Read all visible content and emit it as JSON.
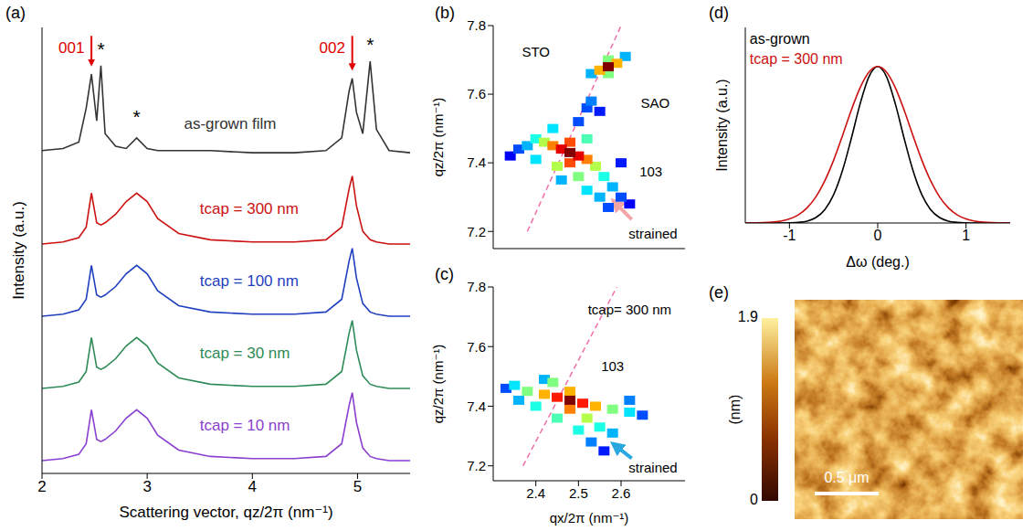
{
  "chart_data": [
    {
      "type": "line",
      "panel": "(a)",
      "x_label": "Scattering vector, qz/2π (nm⁻¹)",
      "y_label": "Intensity (a.u.)",
      "tick_labels": "x",
      "xlim": [
        2,
        5.5
      ],
      "xticks": [
        2,
        3,
        4,
        5
      ],
      "ylim": [
        0,
        10.5
      ],
      "x": [
        2.0,
        2.2,
        2.35,
        2.42,
        2.47,
        2.52,
        2.56,
        2.6,
        2.7,
        2.8,
        2.9,
        3.0,
        3.1,
        3.3,
        3.6,
        4.0,
        4.4,
        4.7,
        4.85,
        4.92,
        4.95,
        4.99,
        5.05,
        5.12,
        5.18,
        5.3,
        5.5
      ],
      "series": [
        {
          "name": "as-grown film",
          "color": "#333333",
          "label_x": 3.35,
          "label_y": 8.2,
          "values": [
            7.6,
            7.65,
            7.8,
            8.6,
            9.4,
            8.3,
            9.6,
            8.0,
            7.7,
            7.65,
            7.9,
            7.65,
            7.6,
            7.6,
            7.6,
            7.55,
            7.55,
            7.6,
            7.9,
            9.0,
            9.3,
            8.5,
            8.0,
            9.7,
            8.1,
            7.6,
            7.55
          ]
        },
        {
          "name": "tcap = 300 nm",
          "color": "#cc1111",
          "label_x": 3.5,
          "label_y": 6.2,
          "values": [
            5.4,
            5.45,
            5.55,
            5.8,
            6.6,
            5.9,
            5.85,
            5.9,
            6.1,
            6.4,
            6.6,
            6.4,
            6.0,
            5.65,
            5.5,
            5.45,
            5.45,
            5.5,
            5.8,
            6.7,
            7.0,
            6.3,
            5.7,
            5.5,
            5.45,
            5.4,
            5.4
          ]
        },
        {
          "name": "tcap = 100 nm",
          "color": "#1f3fbf",
          "label_x": 3.5,
          "label_y": 4.5,
          "values": [
            3.7,
            3.75,
            3.85,
            4.1,
            4.9,
            4.2,
            4.15,
            4.2,
            4.4,
            4.7,
            4.9,
            4.7,
            4.3,
            3.95,
            3.8,
            3.75,
            3.75,
            3.8,
            4.1,
            5.0,
            5.3,
            4.6,
            4.0,
            3.8,
            3.75,
            3.7,
            3.7
          ]
        },
        {
          "name": "tcap = 30 nm",
          "color": "#2e8b57",
          "label_x": 3.5,
          "label_y": 2.8,
          "values": [
            2.0,
            2.05,
            2.15,
            2.4,
            3.2,
            2.5,
            2.45,
            2.5,
            2.7,
            3.0,
            3.2,
            3.0,
            2.6,
            2.25,
            2.1,
            2.05,
            2.05,
            2.1,
            2.4,
            3.3,
            3.6,
            2.9,
            2.3,
            2.1,
            2.05,
            2.0,
            2.0
          ]
        },
        {
          "name": "tcap = 10 nm",
          "color": "#8a3fd0",
          "label_x": 3.5,
          "label_y": 1.1,
          "values": [
            0.3,
            0.35,
            0.45,
            0.7,
            1.5,
            0.8,
            0.75,
            0.8,
            1.0,
            1.3,
            1.5,
            1.3,
            0.9,
            0.55,
            0.4,
            0.35,
            0.35,
            0.4,
            0.7,
            1.6,
            1.9,
            1.2,
            0.6,
            0.4,
            0.35,
            0.3,
            0.3
          ]
        }
      ],
      "annotations": [
        {
          "text": "001",
          "x": 2.28,
          "y": 10.0,
          "color": "#e00000",
          "arrow_from": [
            2.47,
            10.3
          ],
          "arrow_to": [
            2.47,
            9.65
          ]
        },
        {
          "text": "002",
          "x": 4.76,
          "y": 10.0,
          "color": "#e00000",
          "arrow_from": [
            4.95,
            10.3
          ],
          "arrow_to": [
            4.95,
            9.55
          ]
        },
        {
          "text": "*",
          "x": 2.56,
          "y": 9.95,
          "color": "#000000"
        },
        {
          "text": "*",
          "x": 2.9,
          "y": 8.35,
          "color": "#000000"
        },
        {
          "text": "*",
          "x": 5.12,
          "y": 10.05,
          "color": "#000000"
        }
      ]
    },
    {
      "type": "heatmap",
      "panel": "(b)",
      "y_label": "qz/2π (nm⁻¹)",
      "tick_labels": "y",
      "xlim": [
        2.3,
        2.75
      ],
      "xticks": [
        2.4,
        2.5,
        2.6
      ],
      "ylim": [
        7.15,
        7.8
      ],
      "yticks": [
        7.2,
        7.4,
        7.6,
        7.8
      ],
      "points": {
        "x": [
          2.34,
          2.62,
          2.36,
          2.6,
          2.57,
          2.5,
          2.6,
          2.38,
          2.58,
          2.55,
          2.46,
          2.4,
          2.56,
          2.52,
          2.44,
          2.4,
          2.52,
          2.54,
          2.42,
          2.5,
          2.45,
          2.44,
          2.52,
          2.48,
          2.48,
          2.46,
          2.5,
          2.48,
          2.55,
          2.53,
          2.52,
          2.53,
          2.61,
          2.57,
          2.57,
          2.55,
          2.59,
          2.57
        ],
        "y": [
          7.42,
          7.28,
          7.44,
          7.4,
          7.27,
          7.52,
          7.3,
          7.45,
          7.33,
          7.3,
          7.35,
          7.41,
          7.36,
          7.32,
          7.5,
          7.47,
          7.47,
          7.39,
          7.46,
          7.36,
          7.39,
          7.45,
          7.41,
          7.4,
          7.46,
          7.44,
          7.42,
          7.43,
          7.55,
          7.66,
          7.56,
          7.58,
          7.71,
          7.66,
          7.7,
          7.67,
          7.69,
          7.68
        ],
        "intensity": [
          0.12,
          0.12,
          0.2,
          0.15,
          0.2,
          0.2,
          0.2,
          0.3,
          0.3,
          0.3,
          0.3,
          0.35,
          0.4,
          0.35,
          0.35,
          0.4,
          0.45,
          0.55,
          0.55,
          0.5,
          0.55,
          0.75,
          0.75,
          0.8,
          0.8,
          0.9,
          0.9,
          1.0,
          0.15,
          0.3,
          0.2,
          0.25,
          0.3,
          0.5,
          0.5,
          0.7,
          0.7,
          1.0
        ]
      },
      "line": {
        "x": [
          2.38,
          2.6
        ],
        "y": [
          7.2,
          7.8
        ],
        "color": "#f06ea9",
        "line_style": "dashed"
      },
      "annotations": [
        {
          "text": "STO",
          "x": 2.4,
          "y": 7.72,
          "color": "#000000"
        },
        {
          "text": "SAO",
          "x": 2.68,
          "y": 7.57,
          "color": "#000000"
        },
        {
          "text": "103",
          "x": 2.67,
          "y": 7.37,
          "color": "#000000"
        },
        {
          "text": "strained",
          "x": 2.675,
          "y": 7.19,
          "color": "#000000",
          "arrow_from": [
            2.625,
            7.235
          ],
          "arrow_to": [
            2.585,
            7.285
          ],
          "arrow_color": "#f4a6a6"
        }
      ]
    },
    {
      "type": "heatmap",
      "panel": "(c)",
      "x_label": "qx/2π (nm⁻¹)",
      "y_label": "qz/2π (nm⁻¹)",
      "xlim": [
        2.3,
        2.75
      ],
      "xticks": [
        2.4,
        2.5,
        2.6
      ],
      "ylim": [
        7.15,
        7.8
      ],
      "yticks": [
        7.2,
        7.4,
        7.6,
        7.8
      ],
      "points": {
        "x": [
          2.56,
          2.33,
          2.65,
          2.62,
          2.53,
          2.58,
          2.42,
          2.36,
          2.35,
          2.62,
          2.55,
          2.4,
          2.5,
          2.45,
          2.38,
          2.58,
          2.44,
          2.52,
          2.42,
          2.54,
          2.48,
          2.48,
          2.45,
          2.51,
          2.48
        ],
        "y": [
          7.25,
          7.46,
          7.37,
          7.42,
          7.28,
          7.31,
          7.49,
          7.42,
          7.47,
          7.38,
          7.33,
          7.4,
          7.32,
          7.36,
          7.45,
          7.39,
          7.48,
          7.36,
          7.44,
          7.4,
          7.45,
          7.39,
          7.43,
          7.41,
          7.42
        ],
        "intensity": [
          0.15,
          0.2,
          0.2,
          0.25,
          0.25,
          0.3,
          0.3,
          0.3,
          0.35,
          0.35,
          0.4,
          0.4,
          0.4,
          0.45,
          0.5,
          0.5,
          0.5,
          0.55,
          0.7,
          0.7,
          0.7,
          0.75,
          0.85,
          0.85,
          1.0
        ]
      },
      "line": {
        "x": [
          2.37,
          2.59
        ],
        "y": [
          7.2,
          7.8
        ],
        "color": "#f06ea9",
        "line_style": "dashed"
      },
      "annotations": [
        {
          "text": "tcap= 300 nm",
          "x": 2.62,
          "y": 7.72,
          "color": "#000000"
        },
        {
          "text": "103",
          "x": 2.58,
          "y": 7.53,
          "color": "#000000"
        },
        {
          "text": "strained",
          "x": 2.675,
          "y": 7.19,
          "color": "#000000",
          "arrow_from": [
            2.625,
            7.225
          ],
          "arrow_to": [
            2.585,
            7.27
          ],
          "arrow_color": "#29a8e0"
        }
      ]
    },
    {
      "type": "line",
      "panel": "(d)",
      "x_label": "Δω (deg.)",
      "y_label": "Intensity (a.u.)",
      "tick_labels": "x",
      "xlim": [
        -1.5,
        1.5
      ],
      "xticks": [
        -1,
        0,
        1
      ],
      "ylim": [
        0,
        1.25
      ],
      "x": [
        -1.5,
        -1.4,
        -1.3,
        -1.2,
        -1.1,
        -1.0,
        -0.9,
        -0.8,
        -0.7,
        -0.6,
        -0.5,
        -0.4,
        -0.3,
        -0.2,
        -0.1,
        0,
        0.1,
        0.2,
        0.3,
        0.4,
        0.5,
        0.6,
        0.7,
        0.8,
        0.9,
        1.0,
        1.1,
        1.2,
        1.3,
        1.4,
        1.5
      ],
      "series": [
        {
          "name": "as-grown",
          "color": "#000000",
          "label_x": -1.45,
          "label_y": 1.17,
          "values": [
            0,
            0,
            0,
            0,
            0,
            0.001,
            0.004,
            0.012,
            0.035,
            0.085,
            0.18,
            0.334,
            0.539,
            0.76,
            0.934,
            1,
            0.934,
            0.76,
            0.539,
            0.334,
            0.18,
            0.085,
            0.035,
            0.012,
            0.004,
            0.001,
            0,
            0,
            0,
            0,
            0
          ]
        },
        {
          "name": "tcap = 300 nm",
          "color": "#cc1111",
          "label_x": -1.45,
          "label_y": 1.04,
          "values": [
            0,
            0.001,
            0.002,
            0.005,
            0.012,
            0.026,
            0.052,
            0.097,
            0.167,
            0.269,
            0.401,
            0.557,
            0.72,
            0.864,
            0.964,
            1,
            0.964,
            0.864,
            0.72,
            0.557,
            0.401,
            0.269,
            0.167,
            0.097,
            0.052,
            0.026,
            0.012,
            0.005,
            0.002,
            0.001,
            0
          ]
        }
      ]
    },
    {
      "type": "image",
      "panel": "(e)",
      "colorbar": {
        "range": [
          0,
          1.9
        ],
        "ticks": [
          0,
          1.9
        ],
        "label": "(nm)"
      },
      "scale_bar": "0.5 μm"
    }
  ]
}
